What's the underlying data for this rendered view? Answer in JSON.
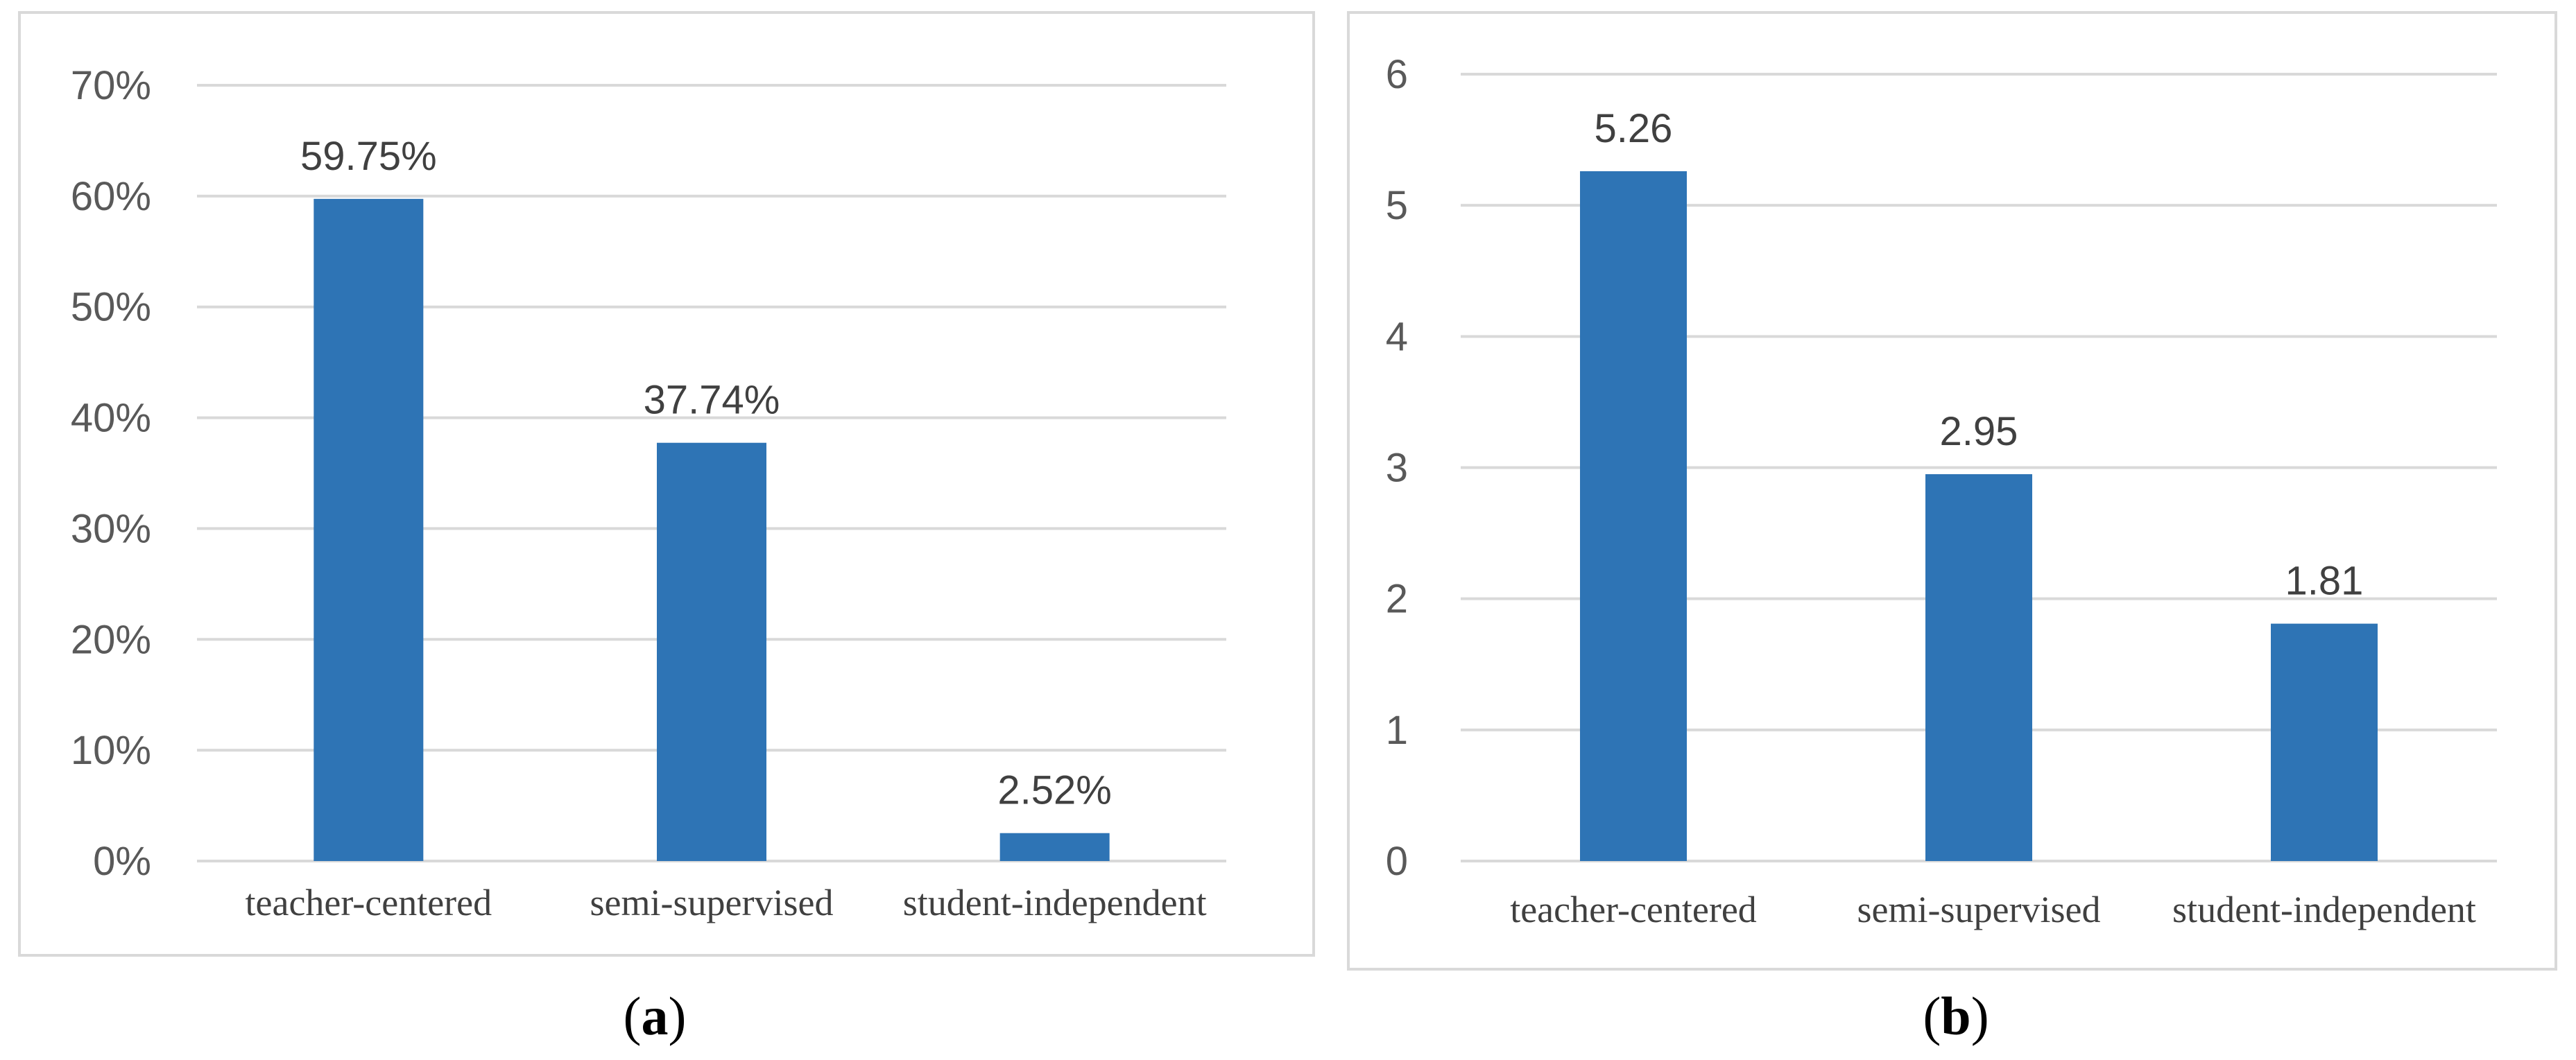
{
  "colors": {
    "bar": "#2e74b5",
    "grid": "#d9d9d9",
    "frame": "#d9d9d9"
  },
  "chart_data": [
    {
      "type": "bar",
      "caption_letter": "a",
      "categories": [
        "teacher-centered",
        "semi-supervised",
        "student-independent"
      ],
      "values": [
        59.75,
        37.74,
        2.52
      ],
      "value_labels": [
        "59.75%",
        "37.74%",
        "2.52%"
      ],
      "ylim": [
        0,
        70
      ],
      "yticks": [
        0,
        10,
        20,
        30,
        40,
        50,
        60,
        70
      ],
      "ytick_labels": [
        "0%",
        "10%",
        "20%",
        "30%",
        "40%",
        "50%",
        "60%",
        "70%"
      ],
      "grid": true,
      "legend": "none"
    },
    {
      "type": "bar",
      "caption_letter": "b",
      "categories": [
        "teacher-centered",
        "semi-supervised",
        "student-independent"
      ],
      "values": [
        5.26,
        2.95,
        1.81
      ],
      "value_labels": [
        "5.26",
        "2.95",
        "1.81"
      ],
      "ylim": [
        0,
        6
      ],
      "yticks": [
        0,
        1,
        2,
        3,
        4,
        5,
        6
      ],
      "ytick_labels": [
        "0",
        "1",
        "2",
        "3",
        "4",
        "5",
        "6"
      ],
      "grid": true,
      "legend": "none"
    }
  ]
}
